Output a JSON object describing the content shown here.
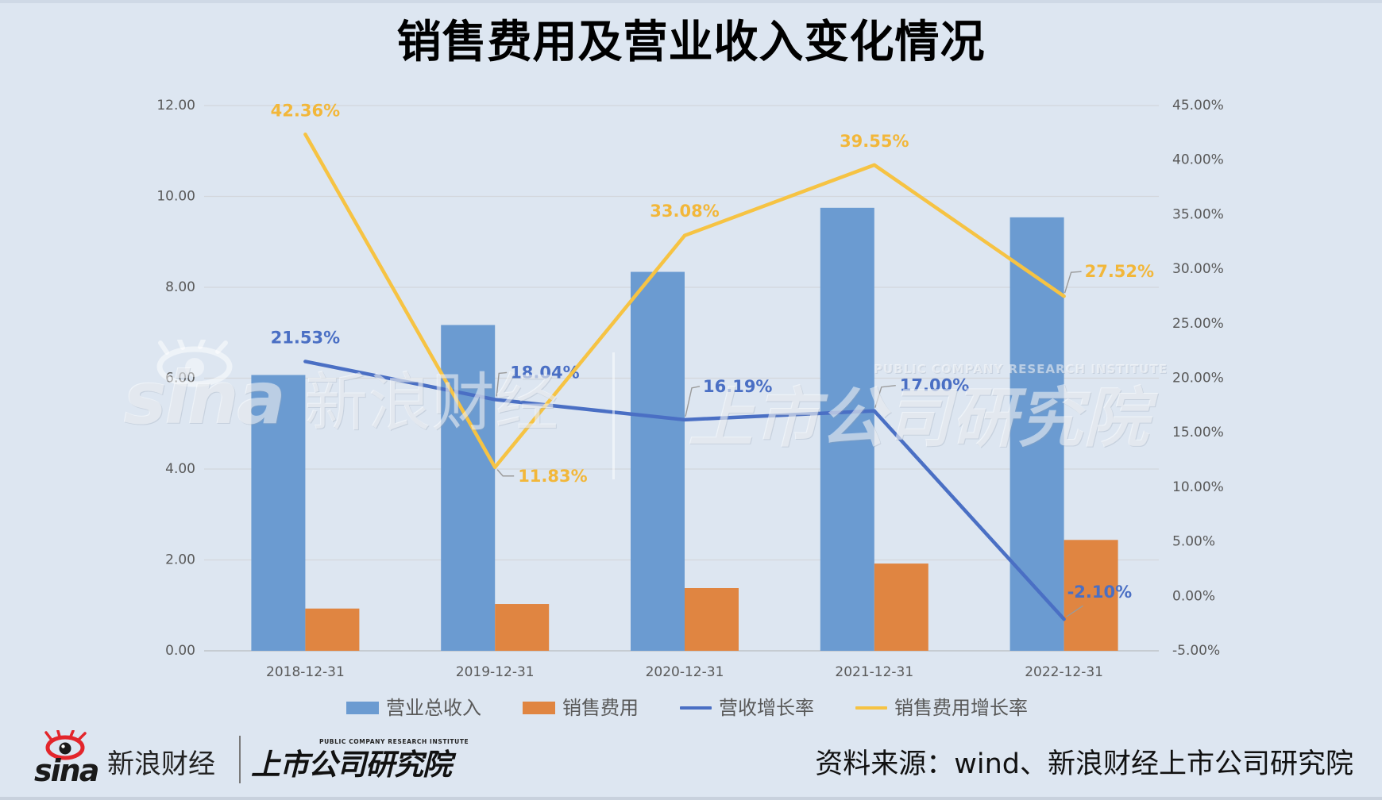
{
  "chart_data": {
    "type": "bar",
    "title": "销售费用及营业收入变化情况",
    "categories": [
      "2018-12-31",
      "2019-12-31",
      "2020-12-31",
      "2021-12-31",
      "2022-12-31"
    ],
    "series": [
      {
        "name": "营业总收入",
        "type": "bar",
        "axis": "left",
        "color": "#6b9bd1",
        "values": [
          6.07,
          7.17,
          8.34,
          9.75,
          9.54
        ]
      },
      {
        "name": "销售费用",
        "type": "bar",
        "axis": "left",
        "color": "#e08541",
        "values": [
          0.93,
          1.03,
          1.38,
          1.92,
          2.44
        ]
      },
      {
        "name": "营收增长率",
        "type": "line",
        "axis": "right",
        "color": "#4a6fc4",
        "label_color": "#4a6fc4",
        "values": [
          21.53,
          18.04,
          16.19,
          17.0,
          -2.1
        ],
        "labels": [
          "21.53%",
          "18.04%",
          "16.19%",
          "17.00%",
          "-2.10%"
        ]
      },
      {
        "name": "销售费用增长率",
        "type": "line",
        "axis": "right",
        "color": "#f6c343",
        "label_color": "#f2b73a",
        "values": [
          42.36,
          11.83,
          33.08,
          39.55,
          27.52
        ],
        "labels": [
          "42.36%",
          "11.83%",
          "33.08%",
          "39.55%",
          "27.52%"
        ]
      }
    ],
    "y_left": {
      "lim": [
        0,
        12
      ],
      "ticks": [
        "0.00",
        "2.00",
        "4.00",
        "6.00",
        "8.00",
        "10.00",
        "12.00"
      ]
    },
    "y_right": {
      "lim": [
        -5,
        45
      ],
      "ticks": [
        "-5.00%",
        "0.00%",
        "5.00%",
        "10.00%",
        "15.00%",
        "20.00%",
        "25.00%",
        "30.00%",
        "35.00%",
        "40.00%",
        "45.00%"
      ]
    },
    "grid": true,
    "legend_position": "bottom"
  },
  "watermark": {
    "brand": "sina",
    "name": "新浪财经",
    "institute": "上市公司研究院",
    "institute_en": "PUBLIC COMPANY RESEARCH INSTITUTE"
  },
  "footer": {
    "brand_logo": "sina",
    "brand_name": "新浪财经",
    "institute_logo": "上市公司研究院",
    "institute_en": "PUBLIC COMPANY RESEARCH INSTITUTE",
    "source": "资料来源：wind、新浪财经上市公司研究院"
  },
  "colors": {
    "background": "#dde6f1",
    "title": "#000000",
    "axis_text": "#595959",
    "gridline": "#d3d7dc",
    "leader_line": "#9a9a9a",
    "logo_red": "#e3252b"
  }
}
